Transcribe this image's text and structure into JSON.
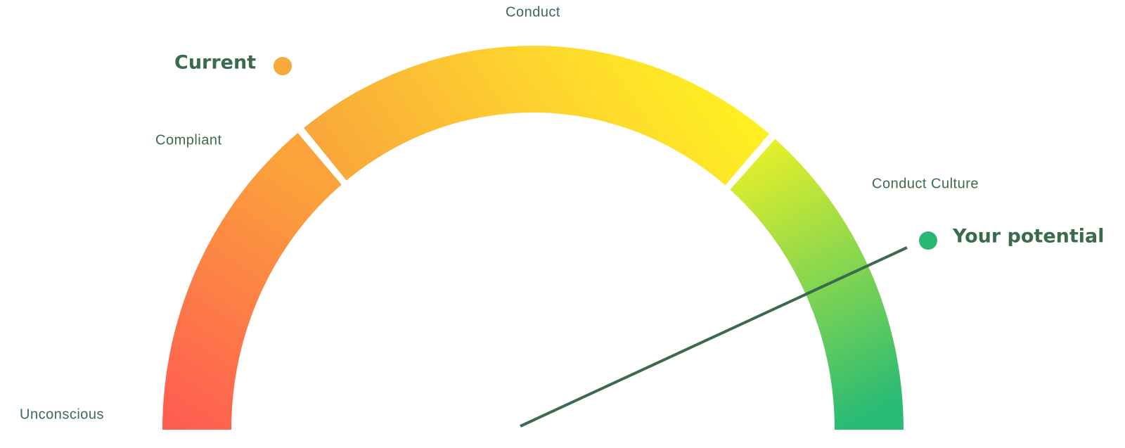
{
  "gauge": {
    "stages": [
      "Unconscious",
      "Compliant",
      "Conduct",
      "Conduct Culture"
    ]
  },
  "markers": [
    {
      "label": "Current"
    },
    {
      "label": "Your potential"
    }
  ]
}
